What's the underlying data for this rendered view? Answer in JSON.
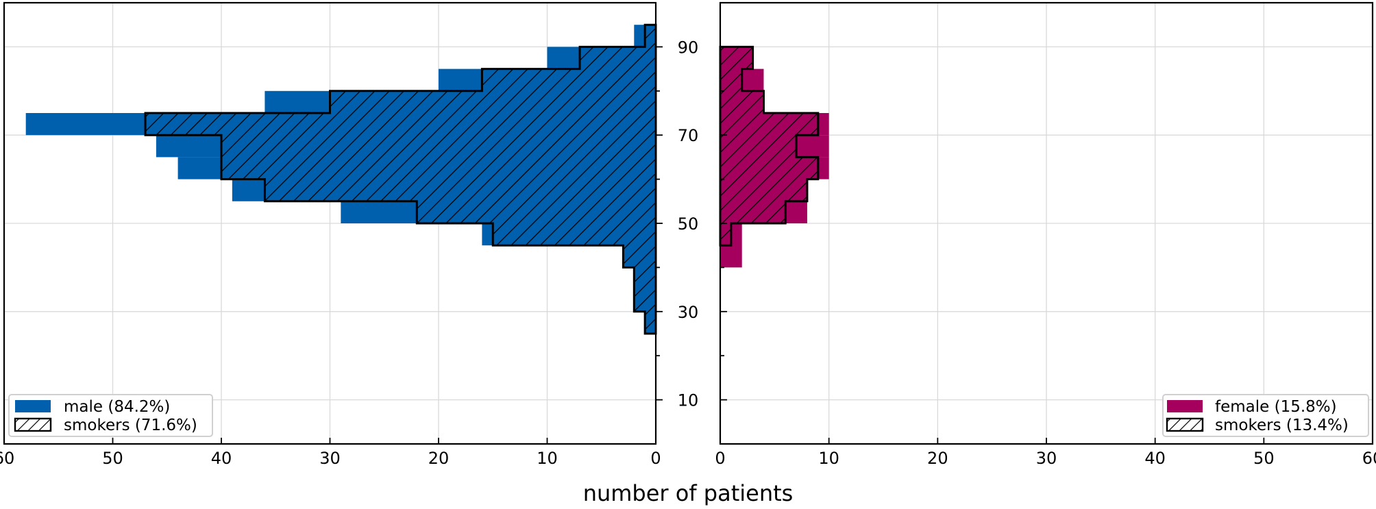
{
  "chart_data": {
    "type": "bar",
    "orientation": "horizontal-mirrored",
    "bin_edges": [
      40,
      45,
      50,
      55,
      60,
      65,
      70,
      75,
      80,
      85,
      90,
      95
    ],
    "yticks": [
      10,
      30,
      50,
      70,
      90
    ],
    "ylim": [
      0,
      100
    ],
    "xticks": [
      0,
      10,
      20,
      30,
      40,
      50,
      60
    ],
    "xlim": [
      0,
      60
    ],
    "xlabel": "number of patients",
    "grid": true,
    "panels": [
      {
        "side": "left",
        "color": "#0060ad",
        "legend_position": "lower-left",
        "legend": [
          "male (84.2%)",
          "smokers (71.6%)"
        ],
        "all_bins": [
          {
            "lo": 45,
            "hi": 50,
            "count": 16
          },
          {
            "lo": 50,
            "hi": 55,
            "count": 29
          },
          {
            "lo": 55,
            "hi": 60,
            "count": 39
          },
          {
            "lo": 60,
            "hi": 65,
            "count": 44
          },
          {
            "lo": 65,
            "hi": 70,
            "count": 46
          },
          {
            "lo": 70,
            "hi": 75,
            "count": 58
          },
          {
            "lo": 75,
            "hi": 80,
            "count": 36
          },
          {
            "lo": 80,
            "hi": 85,
            "count": 20
          },
          {
            "lo": 85,
            "hi": 90,
            "count": 10
          },
          {
            "lo": 90,
            "hi": 95,
            "count": 2
          }
        ],
        "smokers_bins": [
          {
            "lo": 25,
            "hi": 30,
            "count": 1
          },
          {
            "lo": 30,
            "hi": 40,
            "count": 2
          },
          {
            "lo": 40,
            "hi": 45,
            "count": 3
          },
          {
            "lo": 45,
            "hi": 50,
            "count": 15
          },
          {
            "lo": 50,
            "hi": 55,
            "count": 22
          },
          {
            "lo": 55,
            "hi": 60,
            "count": 36
          },
          {
            "lo": 60,
            "hi": 70,
            "count": 40
          },
          {
            "lo": 70,
            "hi": 75,
            "count": 47
          },
          {
            "lo": 75,
            "hi": 80,
            "count": 30
          },
          {
            "lo": 80,
            "hi": 85,
            "count": 16
          },
          {
            "lo": 85,
            "hi": 90,
            "count": 7
          },
          {
            "lo": 90,
            "hi": 95,
            "count": 1
          }
        ]
      },
      {
        "side": "right",
        "color": "#a5005e",
        "legend_position": "lower-right",
        "legend": [
          "female (15.8%)",
          "smokers (13.4%)"
        ],
        "all_bins": [
          {
            "lo": 40,
            "hi": 50,
            "count": 2
          },
          {
            "lo": 50,
            "hi": 55,
            "count": 8
          },
          {
            "lo": 55,
            "hi": 60,
            "count": 8
          },
          {
            "lo": 60,
            "hi": 65,
            "count": 10
          },
          {
            "lo": 65,
            "hi": 70,
            "count": 10
          },
          {
            "lo": 70,
            "hi": 75,
            "count": 10
          },
          {
            "lo": 75,
            "hi": 80,
            "count": 4
          },
          {
            "lo": 80,
            "hi": 85,
            "count": 4
          },
          {
            "lo": 85,
            "hi": 90,
            "count": 3
          }
        ],
        "smokers_bins": [
          {
            "lo": 45,
            "hi": 50,
            "count": 1
          },
          {
            "lo": 50,
            "hi": 55,
            "count": 6
          },
          {
            "lo": 55,
            "hi": 60,
            "count": 8
          },
          {
            "lo": 60,
            "hi": 65,
            "count": 9
          },
          {
            "lo": 65,
            "hi": 70,
            "count": 7
          },
          {
            "lo": 70,
            "hi": 75,
            "count": 9
          },
          {
            "lo": 75,
            "hi": 80,
            "count": 4
          },
          {
            "lo": 80,
            "hi": 85,
            "count": 2
          },
          {
            "lo": 85,
            "hi": 90,
            "count": 3
          }
        ]
      }
    ]
  }
}
